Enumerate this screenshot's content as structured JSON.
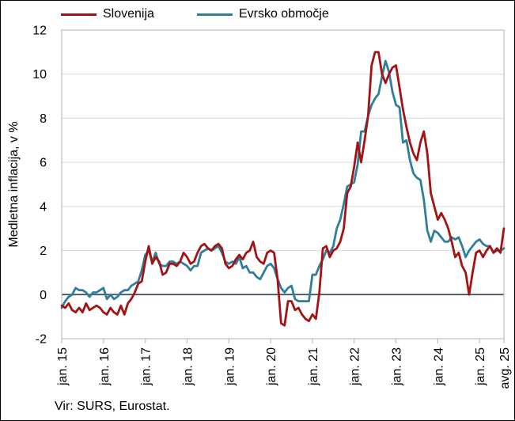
{
  "legend": {
    "items": [
      {
        "label": "Slovenija",
        "color": "#a31313"
      },
      {
        "label": "Evrsko območje",
        "color": "#2f7f9b"
      }
    ]
  },
  "y_axis": {
    "title": "Medletna inflacija, v %",
    "ticks": [
      12,
      10,
      8,
      6,
      4,
      2,
      0,
      -2
    ],
    "min": -2,
    "max": 12
  },
  "x_axis": {
    "tick_labels": [
      "jan. 15",
      "jan. 16",
      "jan. 17",
      "jan. 18",
      "jan. 19",
      "jan. 20",
      "jan. 21",
      "jan. 22",
      "jan. 23",
      "jan. 24",
      "jan. 25",
      "avg. 25"
    ]
  },
  "source": "Vir: SURS, Eurostat.",
  "colors": {
    "slovenija_line": "#a31313",
    "evrsko_line": "#2f7f9b",
    "zero_line": "#3d4a5a",
    "gridline": "#d9d9d9",
    "plot_border": "#bfbfbf",
    "text": "#000000"
  },
  "chart_data": {
    "type": "line",
    "frequency": "monthly",
    "x_start": "jan. 2015",
    "x_end": "avg. 2025",
    "n_points": 128,
    "title": "",
    "xlabel": "",
    "ylabel": "Medletna inflacija, v %",
    "ylim": [
      -2,
      12
    ],
    "grid": "horizontal",
    "legend_position": "top",
    "series": [
      {
        "name": "Slovenija",
        "color": "#a31313",
        "values": [
          -0.5,
          -0.6,
          -0.4,
          -0.7,
          -0.8,
          -0.6,
          -0.8,
          -0.4,
          -0.7,
          -0.6,
          -0.5,
          -0.6,
          -0.8,
          -0.9,
          -0.6,
          -0.8,
          -0.9,
          -0.5,
          -0.9,
          -0.4,
          -0.2,
          0.1,
          0.5,
          0.6,
          1.5,
          2.2,
          1.4,
          1.7,
          1.5,
          0.9,
          1.0,
          1.4,
          1.4,
          1.3,
          1.5,
          1.9,
          1.7,
          1.4,
          1.5,
          1.9,
          2.2,
          2.3,
          2.1,
          2.0,
          2.2,
          2.3,
          2.1,
          1.4,
          1.2,
          1.3,
          1.6,
          1.8,
          1.6,
          1.9,
          2.0,
          2.4,
          1.7,
          1.5,
          1.4,
          1.9,
          2.0,
          1.9,
          0.7,
          -1.3,
          -1.4,
          -0.3,
          -0.3,
          -0.7,
          -0.6,
          -0.9,
          -1.1,
          -1.2,
          -0.9,
          -1.1,
          0.1,
          2.1,
          2.2,
          1.7,
          2.0,
          2.1,
          2.4,
          3.0,
          4.6,
          4.9,
          5.8,
          6.9,
          6.0,
          7.0,
          8.1,
          10.4,
          11.0,
          11.0,
          10.0,
          9.6,
          10.0,
          10.3,
          10.4,
          9.4,
          8.4,
          7.6,
          6.9,
          6.4,
          6.1,
          6.9,
          7.4,
          6.4,
          4.6,
          4.0,
          3.4,
          3.7,
          3.4,
          3.0,
          2.4,
          1.7,
          1.9,
          1.3,
          1.0,
          0.0,
          1.0,
          1.9,
          2.0,
          1.7,
          2.0,
          2.2,
          1.9,
          2.1,
          1.9,
          3.0
        ]
      },
      {
        "name": "Evrsko območje",
        "color": "#2f7f9b",
        "values": [
          -0.6,
          -0.3,
          -0.1,
          0.0,
          0.3,
          0.2,
          0.2,
          0.1,
          -0.1,
          0.1,
          0.1,
          0.2,
          0.3,
          -0.2,
          0.0,
          -0.2,
          -0.1,
          0.1,
          0.2,
          0.2,
          0.4,
          0.5,
          0.6,
          1.1,
          1.8,
          2.0,
          1.5,
          1.9,
          1.4,
          1.3,
          1.3,
          1.5,
          1.5,
          1.4,
          1.5,
          1.4,
          1.3,
          1.1,
          1.3,
          1.3,
          1.9,
          2.0,
          2.1,
          2.0,
          2.1,
          2.2,
          1.9,
          1.5,
          1.4,
          1.5,
          1.4,
          1.7,
          1.2,
          1.3,
          1.0,
          1.0,
          0.8,
          0.7,
          1.0,
          1.3,
          1.4,
          1.2,
          0.7,
          0.3,
          0.1,
          0.3,
          0.4,
          -0.2,
          -0.3,
          -0.3,
          -0.3,
          -0.3,
          0.9,
          0.9,
          1.3,
          1.6,
          2.0,
          1.9,
          2.2,
          3.0,
          3.4,
          4.1,
          4.9,
          5.0,
          5.1,
          5.9,
          7.4,
          7.4,
          8.1,
          8.6,
          8.9,
          9.1,
          9.9,
          10.6,
          10.1,
          9.2,
          8.6,
          8.5,
          6.9,
          7.0,
          6.1,
          5.5,
          5.3,
          5.2,
          4.3,
          2.9,
          2.4,
          2.9,
          2.8,
          2.6,
          2.4,
          2.4,
          2.6,
          2.5,
          2.6,
          2.2,
          1.7,
          2.0,
          2.2,
          2.4,
          2.5,
          2.3,
          2.2,
          2.2,
          1.9,
          2.0,
          2.0,
          2.1
        ]
      }
    ]
  }
}
